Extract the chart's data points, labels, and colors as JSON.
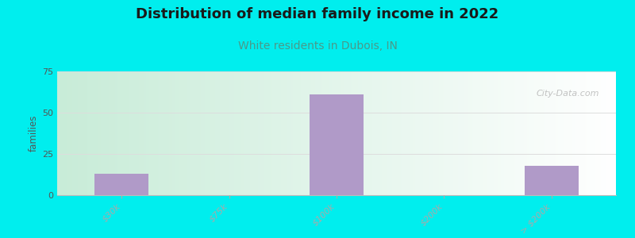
{
  "title": "Distribution of median family income in 2022",
  "subtitle": "White residents in Dubois, IN",
  "title_fontsize": 13,
  "subtitle_fontsize": 10,
  "title_color": "#1a1a1a",
  "subtitle_color": "#4a9a8a",
  "background_color": "#00eeee",
  "grad_color_left": "#c8ecd8",
  "grad_color_right": "#ffffff",
  "bar_color": "#b09ac8",
  "categories": [
    "$30k",
    "$75k",
    "$100k",
    "$200k",
    "> $200k"
  ],
  "values": [
    13,
    0,
    61,
    0,
    18
  ],
  "ylabel": "families",
  "ylim": [
    0,
    75
  ],
  "yticks": [
    0,
    25,
    50,
    75
  ],
  "watermark": "City-Data.com",
  "bar_width": 0.5
}
